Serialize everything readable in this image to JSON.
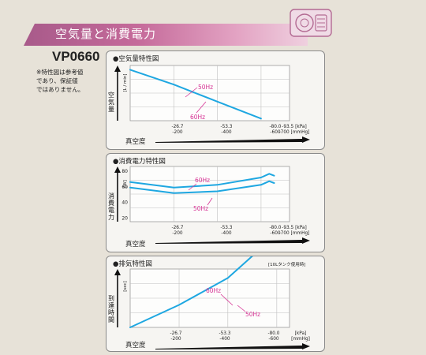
{
  "header": {
    "title": "空気量と消費電力",
    "model": "VP0660",
    "note_lines": [
      "※特性図は参考値",
      "であり、保証値",
      "ではありません。"
    ]
  },
  "colors": {
    "curve": "#1ea7e1",
    "label": "#d63394",
    "grid": "#bfbfbf",
    "band": "#c56a9a"
  },
  "icons": {
    "pump": "pump-icon"
  },
  "charts": [
    {
      "title": "●空気量特性図",
      "ylabel": "空気量",
      "yunit": "[L / min]",
      "xlabel": "真空度",
      "x_ticks": [
        {
          "kpa": "-26.7",
          "mmhg": "-200"
        },
        {
          "kpa": "-53.3",
          "mmhg": "-400"
        },
        {
          "kpa": "-80.0",
          "mmhg": "-600"
        },
        {
          "kpa": "-93.5 [kPa]",
          "mmhg": "-700 [mmHg]"
        }
      ],
      "callouts": [
        "50Hz",
        "60Hz"
      ]
    },
    {
      "title": "●消費電力特性図",
      "ylabel": "消費電力",
      "yunit": "[W]",
      "xlabel": "真空度",
      "y_ticks": [
        "80",
        "60",
        "40",
        "20"
      ],
      "x_ticks": [
        {
          "kpa": "-26.7",
          "mmhg": "-200"
        },
        {
          "kpa": "-53.3",
          "mmhg": "-400"
        },
        {
          "kpa": "-80.0",
          "mmhg": "-600"
        },
        {
          "kpa": "-93.5 [kPa]",
          "mmhg": "-700 [mmHg]"
        }
      ],
      "callouts": [
        "60Hz",
        "50Hz"
      ]
    },
    {
      "title": "●排気特性図",
      "note": "[10Lタンク使用時]",
      "ylabel": "到達時間",
      "yunit": "[sec]",
      "xlabel": "真空度",
      "x_ticks": [
        {
          "kpa": "-26.7",
          "mmhg": "-200"
        },
        {
          "kpa": "-53.3",
          "mmhg": "-400"
        },
        {
          "kpa": "-80.0",
          "mmhg": "-600"
        },
        {
          "kpa": "[kPa]",
          "mmhg": "[mmHg]"
        }
      ],
      "callouts": [
        "60Hz",
        "50Hz"
      ]
    }
  ],
  "chart_data": [
    {
      "type": "line",
      "title": "●空気量特性図",
      "xlabel": "真空度",
      "ylabel": "空気量",
      "x_unit": "kPa",
      "y_unit": "L / min",
      "xlim": [
        0,
        -93.5
      ],
      "series": [
        {
          "name": "50Hz",
          "x": [
            0,
            -26.7,
            -53.3,
            -80.0
          ],
          "y": [
            24,
            17,
            9,
            1
          ]
        },
        {
          "name": "60Hz",
          "x": [
            0,
            -26.7,
            -53.3,
            -80.0
          ],
          "y": [
            24,
            17,
            9,
            1
          ]
        }
      ],
      "grid": true
    },
    {
      "type": "line",
      "title": "●消費電力特性図",
      "xlabel": "真空度",
      "ylabel": "消費電力",
      "x_unit": "kPa",
      "y_unit": "W",
      "xlim": [
        0,
        -93.5
      ],
      "ylim": [
        20,
        80
      ],
      "series": [
        {
          "name": "60Hz",
          "x": [
            0,
            -26.7,
            -53.3,
            -80.0,
            -85.0,
            -88.0
          ],
          "y": [
            63,
            57,
            60,
            68,
            72,
            70
          ]
        },
        {
          "name": "50Hz",
          "x": [
            0,
            -26.7,
            -53.3,
            -80.0,
            -85.0,
            -88.0
          ],
          "y": [
            57,
            51,
            53,
            60,
            64,
            62
          ]
        }
      ],
      "grid": true
    },
    {
      "type": "line",
      "title": "●排気特性図",
      "xlabel": "真空度",
      "ylabel": "到達時間",
      "x_unit": "kPa",
      "y_unit": "sec",
      "xlim": [
        0,
        -80.0
      ],
      "series": [
        {
          "name": "60Hz",
          "x": [
            0,
            -26.7,
            -53.3,
            -67.0,
            -76.0
          ],
          "y": [
            0,
            10,
            22,
            32,
            42
          ]
        },
        {
          "name": "50Hz",
          "x": [
            0,
            -26.7,
            -53.3,
            -67.0,
            -76.0
          ],
          "y": [
            0,
            10,
            22,
            32,
            42
          ]
        }
      ],
      "grid": true
    }
  ]
}
